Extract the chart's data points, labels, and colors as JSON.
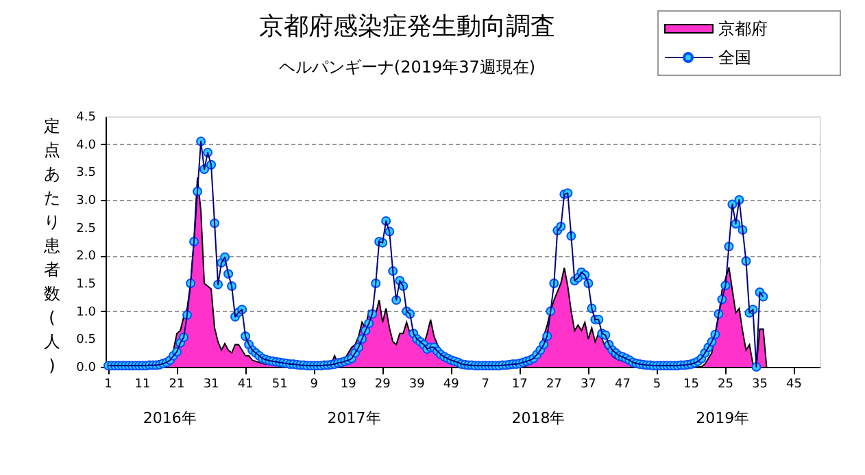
{
  "chart_data": {
    "type": "line",
    "title": "京都府感染症発生動向調査",
    "subtitle": "ヘルパンギーナ(2019年37週現在)",
    "ylabel": "定点あたり患者数(人)",
    "categories": [
      "1",
      null,
      null,
      null,
      null,
      null,
      null,
      null,
      null,
      null,
      "11",
      null,
      null,
      null,
      null,
      null,
      null,
      null,
      null,
      null,
      "21",
      null,
      null,
      null,
      null,
      null,
      null,
      null,
      null,
      null,
      "31",
      null,
      null,
      null,
      null,
      null,
      null,
      null,
      null,
      null,
      "41",
      null,
      null,
      null,
      null,
      null,
      null,
      null,
      null,
      null,
      "51",
      null,
      null,
      null,
      null,
      null,
      null,
      null,
      null,
      null,
      "9",
      null,
      null,
      null,
      null,
      null,
      null,
      null,
      null,
      null,
      "19",
      null,
      null,
      null,
      null,
      null,
      null,
      null,
      null,
      null,
      "29",
      null,
      null,
      null,
      null,
      null,
      null,
      null,
      null,
      null,
      "39",
      null,
      null,
      null,
      null,
      null,
      null,
      null,
      null,
      null,
      "49",
      null,
      null,
      null,
      null,
      null,
      null,
      null,
      null,
      null,
      "7",
      null,
      null,
      null,
      null,
      null,
      null,
      null,
      null,
      null,
      "17",
      null,
      null,
      null,
      null,
      null,
      null,
      null,
      null,
      null,
      "27",
      null,
      null,
      null,
      null,
      null,
      null,
      null,
      null,
      null,
      "37",
      null,
      null,
      null,
      null,
      null,
      null,
      null,
      null,
      null,
      "47",
      null,
      null,
      null,
      null,
      null,
      null,
      null,
      null,
      null,
      "5",
      null,
      null,
      null,
      null,
      null,
      null,
      null,
      null,
      null,
      "15",
      null,
      null,
      null,
      null,
      null,
      null,
      null,
      null,
      null,
      "25",
      null,
      null,
      null,
      null,
      null,
      null,
      null,
      null,
      null,
      "35",
      null,
      null,
      null,
      null,
      null,
      null,
      null,
      null,
      null,
      "45",
      null,
      null,
      null,
      null,
      null,
      null,
      null
    ],
    "series": [
      {
        "name": "京都府",
        "type": "area",
        "color": "#ff33cc",
        "values": [
          0,
          0,
          0,
          0,
          0,
          0,
          0,
          0,
          0,
          0,
          0,
          0,
          0,
          0,
          0,
          0,
          0,
          0.05,
          0.15,
          0.3,
          0.6,
          0.65,
          0.9,
          1.05,
          1.5,
          2.3,
          3.4,
          2.8,
          1.5,
          1.45,
          1.4,
          0.7,
          0.45,
          0.3,
          0.42,
          0.3,
          0.25,
          0.4,
          0.4,
          0.3,
          0.2,
          0.2,
          0.12,
          0.1,
          0.08,
          0.06,
          0.05,
          0.05,
          0.04,
          0.03,
          0.02,
          0.02,
          0,
          0,
          0,
          0,
          0,
          0,
          0,
          0,
          0,
          0,
          0,
          0,
          0,
          0.05,
          0.2,
          0.05,
          0.1,
          0.15,
          0.25,
          0.35,
          0.4,
          0.55,
          0.8,
          0.7,
          1.0,
          0.9,
          0.95,
          1.2,
          0.8,
          1.05,
          0.7,
          0.45,
          0.4,
          0.6,
          0.6,
          0.8,
          0.6,
          0.55,
          0.45,
          0.5,
          0.4,
          0.6,
          0.85,
          0.55,
          0.4,
          0.3,
          0.2,
          0.15,
          0.1,
          0.06,
          0.04,
          0.02,
          0,
          0,
          0,
          0,
          0,
          0,
          0,
          0,
          0,
          0,
          0,
          0,
          0,
          0,
          0,
          0,
          0,
          0,
          0.02,
          0.05,
          0.1,
          0.2,
          0.35,
          0.55,
          0.75,
          1.0,
          1.2,
          1.35,
          1.5,
          1.78,
          1.45,
          1.0,
          0.65,
          0.75,
          0.65,
          0.8,
          0.5,
          0.7,
          0.45,
          0.6,
          0.5,
          0.35,
          0.3,
          0.2,
          0.15,
          0.12,
          0.1,
          0.08,
          0.06,
          0.04,
          0.02,
          0.02,
          0,
          0,
          0,
          0,
          0,
          0,
          0,
          0,
          0,
          0,
          0,
          0,
          0,
          0,
          0,
          0,
          0,
          0,
          0.05,
          0.15,
          0.25,
          0.6,
          0.9,
          1.38,
          1.58,
          1.79,
          1.38,
          0.97,
          1.05,
          0.64,
          0.3,
          0.4,
          0.05,
          0,
          0.68,
          0.68,
          0,
          null,
          null,
          null,
          null,
          null,
          null,
          null,
          null,
          null,
          null,
          null,
          null,
          null,
          null,
          null
        ]
      },
      {
        "name": "全国",
        "color": "#33ccff",
        "marker": "circle",
        "values": [
          0.02,
          0.02,
          0.02,
          0.02,
          0.02,
          0.02,
          0.02,
          0.02,
          0.02,
          0.02,
          0.02,
          0.02,
          0.03,
          0.03,
          0.03,
          0.04,
          0.06,
          0.08,
          0.12,
          0.2,
          0.27,
          0.43,
          0.53,
          0.93,
          1.5,
          2.25,
          3.15,
          4.05,
          3.55,
          3.85,
          3.63,
          2.58,
          1.48,
          1.87,
          1.97,
          1.67,
          1.45,
          0.9,
          0.98,
          1.03,
          0.55,
          0.4,
          0.3,
          0.25,
          0.2,
          0.15,
          0.13,
          0.11,
          0.1,
          0.09,
          0.08,
          0.07,
          0.06,
          0.05,
          0.05,
          0.04,
          0.03,
          0.03,
          0.02,
          0.02,
          0.02,
          0.02,
          0.02,
          0.03,
          0.03,
          0.04,
          0.05,
          0.07,
          0.08,
          0.1,
          0.12,
          0.15,
          0.25,
          0.35,
          0.5,
          0.65,
          0.78,
          0.95,
          1.5,
          2.25,
          2.23,
          2.62,
          2.43,
          1.72,
          1.2,
          1.55,
          1.45,
          1.0,
          0.95,
          0.6,
          0.5,
          0.45,
          0.4,
          0.32,
          0.35,
          0.35,
          0.28,
          0.22,
          0.18,
          0.15,
          0.12,
          0.1,
          0.08,
          0.05,
          0.04,
          0.03,
          0.03,
          0.02,
          0.02,
          0.02,
          0.02,
          0.02,
          0.02,
          0.02,
          0.02,
          0.03,
          0.03,
          0.04,
          0.05,
          0.05,
          0.06,
          0.08,
          0.1,
          0.12,
          0.15,
          0.22,
          0.3,
          0.4,
          0.55,
          1.0,
          1.5,
          2.45,
          2.52,
          3.1,
          3.12,
          2.35,
          1.55,
          1.6,
          1.7,
          1.65,
          1.5,
          1.05,
          0.85,
          0.85,
          0.6,
          0.57,
          0.4,
          0.3,
          0.25,
          0.2,
          0.18,
          0.15,
          0.12,
          0.08,
          0.06,
          0.05,
          0.04,
          0.03,
          0.03,
          0.02,
          0.02,
          0.02,
          0.02,
          0.02,
          0.02,
          0.02,
          0.02,
          0.03,
          0.03,
          0.04,
          0.05,
          0.07,
          0.1,
          0.15,
          0.25,
          0.35,
          0.45,
          0.58,
          0.95,
          1.21,
          1.46,
          2.16,
          2.92,
          2.57,
          3.0,
          2.46,
          1.9,
          0.97,
          1.03,
          0,
          1.34,
          1.26,
          null,
          null,
          null,
          null,
          null,
          null,
          null,
          null,
          null,
          null,
          null,
          null,
          null,
          null,
          null,
          null
        ]
      }
    ],
    "ylim": [
      0,
      4.5
    ],
    "yticks": [
      {
        "value": 0,
        "label": "0.0"
      },
      {
        "value": 0.5,
        "label": "0.5"
      },
      {
        "value": 1,
        "label": "1.0"
      },
      {
        "value": 1.5,
        "label": "1.5"
      },
      {
        "value": 2,
        "label": "2.0"
      },
      {
        "value": 2.5,
        "label": "2.5"
      },
      {
        "value": 3,
        "label": "3.0"
      },
      {
        "value": 3.5,
        "label": "3.5"
      },
      {
        "value": 4,
        "label": "4.0"
      },
      {
        "value": 4.5,
        "label": "4.5"
      }
    ],
    "annotations": [
      "2016年",
      "2017年",
      "2018年",
      "2019年"
    ],
    "grid": "y",
    "legend": "top right"
  }
}
